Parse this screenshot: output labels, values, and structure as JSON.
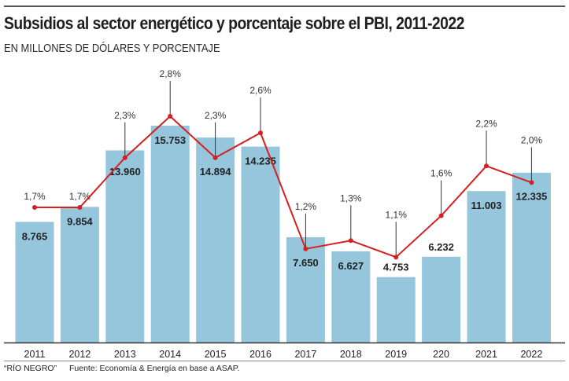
{
  "header": {
    "title": "Subsidios al sector energético y porcentaje sobre el PBI, 2011-2022",
    "subtitle": "EN MILLONES DE DÓLARES Y PORCENTAJE"
  },
  "footer": {
    "credit": "“RÍO NEGRO”",
    "source": "Fuente: Economía & Energía en base a ASAP."
  },
  "colors": {
    "bar": "#95c6dc",
    "line": "#d42020",
    "axis": "#333333",
    "text": "#222222"
  },
  "chart_data": {
    "type": "bar",
    "title": "Subsidios al sector energético y porcentaje sobre el PBI, 2011-2022",
    "subtitle": "EN MILLONES DE DÓLARES Y PORCENTAJE",
    "xlabel": "",
    "ylabel": "",
    "categories": [
      "2011",
      "2012",
      "2013",
      "2014",
      "2015",
      "2016",
      "2017",
      "2018",
      "2019",
      "220",
      "2021",
      "2022"
    ],
    "series": [
      {
        "name": "Subsidios (millones de dólares)",
        "type": "bar",
        "values": [
          8765,
          9854,
          13960,
          15753,
          14894,
          14235,
          7650,
          6627,
          4753,
          6232,
          11003,
          12335
        ],
        "labels": [
          "8.765",
          "9.854",
          "13.960",
          "15.753",
          "14.894",
          "14.235",
          "7.650",
          "6.627",
          "4.753",
          "6.232",
          "11.003",
          "12.335"
        ]
      },
      {
        "name": "Porcentaje sobre el PBI",
        "type": "line",
        "values": [
          1.7,
          1.7,
          2.3,
          2.8,
          2.3,
          2.6,
          1.2,
          1.3,
          1.1,
          1.6,
          2.2,
          2.0
        ],
        "labels": [
          "1,7%",
          "1,7%",
          "2,3%",
          "2,8%",
          "2,3%",
          "2,6%",
          "1,2%",
          "1,3%",
          "1,1%",
          "1,6%",
          "2,2%",
          "2,0%"
        ]
      }
    ],
    "ylim": [
      0,
      16000
    ],
    "grid": false,
    "legend": "none"
  }
}
